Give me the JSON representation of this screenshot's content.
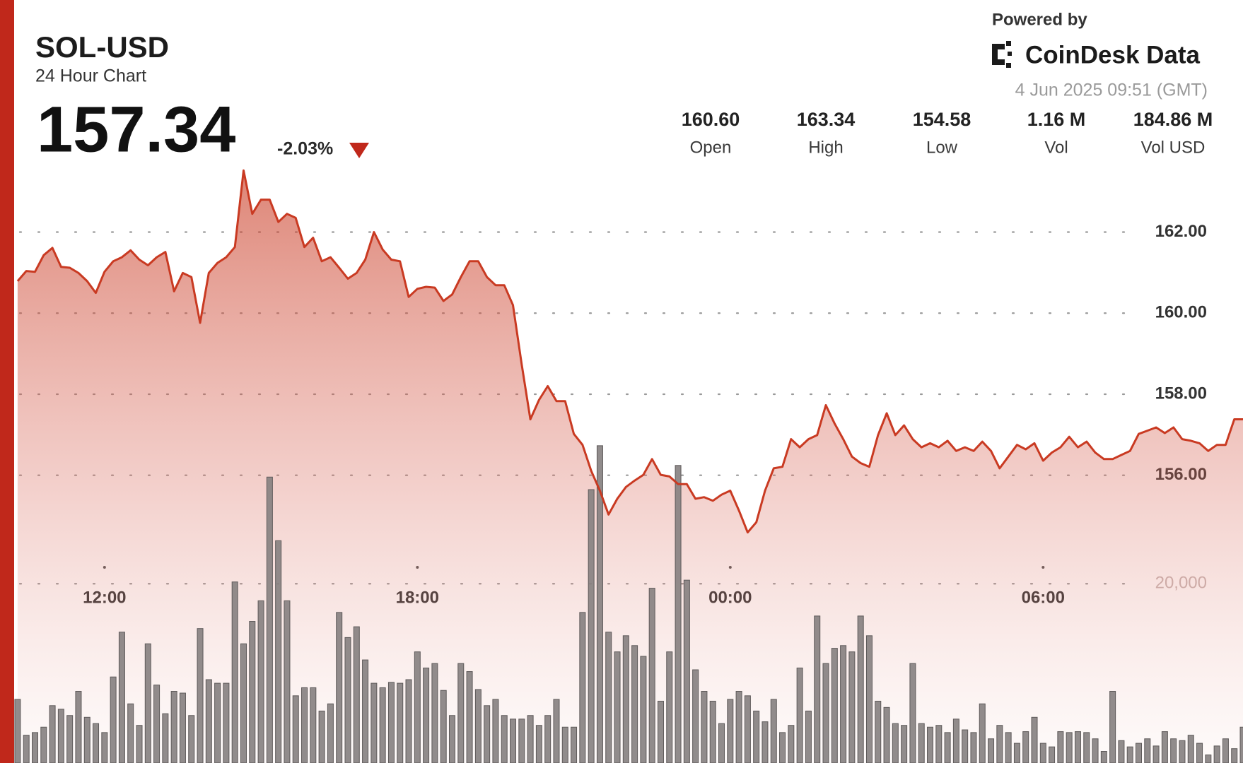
{
  "header": {
    "title": "SOL-USD",
    "subtitle": "24 Hour Chart",
    "price": "157.34",
    "change": "-2.03%",
    "powered_by": "Powered by",
    "brand": "CoinDesk Data",
    "timestamp": "4 Jun 2025 09:51 (GMT)",
    "stats": [
      {
        "value": "160.60",
        "label": "Open"
      },
      {
        "value": "163.34",
        "label": "High"
      },
      {
        "value": "154.58",
        "label": "Low"
      },
      {
        "value": "1.16 M",
        "label": "Vol"
      },
      {
        "value": "184.86 M",
        "label": "Vol USD"
      }
    ]
  },
  "chart_data": {
    "type": "line",
    "x": [
      620,
      630,
      640,
      650,
      660,
      670,
      680,
      690,
      700,
      710,
      720,
      730,
      740,
      750,
      760,
      770,
      780,
      790,
      800,
      810,
      820,
      830,
      840,
      850,
      860,
      870,
      880,
      890,
      900,
      910,
      920,
      930,
      940,
      950,
      960,
      970,
      980,
      990,
      1000,
      1010,
      1020,
      1030,
      1040,
      1050,
      1060,
      1070,
      1080,
      1090,
      1100,
      1110,
      1120,
      1130,
      1140,
      1150,
      1160,
      1170,
      1180,
      1190,
      1200,
      1210,
      1220,
      1230,
      1240,
      1250,
      1260,
      1270,
      1280,
      1290,
      1300,
      1310,
      1320,
      1330,
      1340,
      1350,
      1360,
      1370,
      1380,
      1390,
      1400,
      1410,
      1420,
      1430,
      1440,
      1450,
      1460,
      1470,
      1480,
      1490,
      1500,
      1510,
      1520,
      1530,
      1540,
      1550,
      1560,
      1570,
      1580,
      1590,
      1600,
      1610,
      1620,
      1630,
      1640,
      1650,
      1660,
      1670,
      1680,
      1690,
      1700,
      1710,
      1720,
      1730,
      1740,
      1750,
      1760,
      1770,
      1780,
      1790,
      1800,
      1810,
      1820,
      1830,
      1840,
      1850,
      1860,
      1870,
      1880,
      1890,
      1900,
      1910,
      1920,
      1930,
      1940,
      1950,
      1960,
      1970,
      1980,
      1990,
      2000,
      2010,
      2020,
      2030
    ],
    "series": [
      {
        "color": "#c93a22",
        "values": [
          160.79,
          161.04,
          161.02,
          161.43,
          161.61,
          161.14,
          161.12,
          160.99,
          160.79,
          160.5,
          161.02,
          161.28,
          161.38,
          161.55,
          161.32,
          161.18,
          161.38,
          161.51,
          160.54,
          160.99,
          160.89,
          159.76,
          160.99,
          161.24,
          161.38,
          161.63,
          163.52,
          162.45,
          162.8,
          162.8,
          162.25,
          162.45,
          162.35,
          161.63,
          161.86,
          161.28,
          161.38,
          161.12,
          160.85,
          160.99,
          161.32,
          162.0,
          161.57,
          161.32,
          161.28,
          160.4,
          160.6,
          160.65,
          160.63,
          160.3,
          160.46,
          160.89,
          161.28,
          161.28,
          160.89,
          160.69,
          160.69,
          160.2,
          158.74,
          157.38,
          157.86,
          158.2,
          157.83,
          157.83,
          157.02,
          156.75,
          156.11,
          155.62,
          155.03,
          155.42,
          155.71,
          155.87,
          156.01,
          156.4,
          156.01,
          155.97,
          155.78,
          155.78,
          155.42,
          155.46,
          155.37,
          155.52,
          155.62,
          155.13,
          154.59,
          154.84,
          155.62,
          156.17,
          156.21,
          156.89,
          156.69,
          156.89,
          156.99,
          157.73,
          157.28,
          156.89,
          156.46,
          156.3,
          156.21,
          156.99,
          157.53,
          156.99,
          157.23,
          156.89,
          156.69,
          156.79,
          156.69,
          156.85,
          156.6,
          156.69,
          156.6,
          156.83,
          156.6,
          156.17,
          156.46,
          156.75,
          156.64,
          156.79,
          156.36,
          156.56,
          156.69,
          156.95,
          156.69,
          156.83,
          156.56,
          156.4,
          156.4,
          156.5,
          156.6,
          157.02,
          157.1,
          157.18,
          157.04,
          157.18,
          156.89,
          156.85,
          156.79,
          156.6,
          156.75,
          156.75,
          157.38,
          157.38
        ]
      },
      {
        "color": "#858080",
        "axis": "y2",
        "type": "bar",
        "values": [
          7100,
          3100,
          3400,
          4000,
          6400,
          6000,
          5300,
          8000,
          5100,
          4400,
          3400,
          9600,
          14600,
          6600,
          4200,
          13300,
          8700,
          5500,
          8000,
          7800,
          5300,
          15000,
          9300,
          8900,
          8900,
          20200,
          13300,
          15800,
          18100,
          31900,
          24800,
          18100,
          7500,
          8400,
          8400,
          5800,
          6600,
          16800,
          14000,
          15200,
          11500,
          8900,
          8400,
          9000,
          8900,
          9300,
          12400,
          10600,
          11100,
          8100,
          5300,
          11100,
          10200,
          8200,
          6400,
          7100,
          5300,
          4900,
          4900,
          5300,
          4200,
          5300,
          7100,
          4000,
          4000,
          16800,
          30500,
          35400,
          14600,
          12400,
          14200,
          13100,
          11900,
          19500,
          6900,
          12400,
          33200,
          20400,
          10400,
          8000,
          6900,
          4400,
          7100,
          8000,
          7500,
          5800,
          4600,
          7100,
          3400,
          4200,
          10600,
          5800,
          16400,
          11100,
          12800,
          13100,
          12400,
          16400,
          14200,
          6900,
          6200,
          4400,
          4200,
          11100,
          4400,
          4000,
          4200,
          3400,
          4900,
          3700,
          3400,
          6600,
          2700,
          4200,
          3400,
          2200,
          3500,
          5100,
          2200,
          1800,
          3500,
          3400,
          3500,
          3400,
          2700,
          1300,
          8000,
          2500,
          1800,
          2200,
          2700,
          1900,
          3500,
          2700,
          2500,
          3100,
          2200,
          900,
          1900,
          2700,
          1600,
          4000
        ]
      }
    ],
    "xlim": [
      616,
      2030
    ],
    "xticks": [
      {
        "value": 720,
        "label": "12:00"
      },
      {
        "value": 1080,
        "label": "18:00"
      },
      {
        "value": 1440,
        "label": "00:00"
      },
      {
        "value": 1800,
        "label": "06:00"
      }
    ],
    "ylim": [
      148.9,
      163.63
    ],
    "yticks": [
      {
        "value": 156,
        "label": "156.00"
      },
      {
        "value": 158,
        "label": "158.00"
      },
      {
        "value": 160,
        "label": "160.00"
      },
      {
        "value": 162,
        "label": "162.00"
      }
    ],
    "y2lim": [
      0,
      66600
    ],
    "y2ticks": [
      {
        "value": 20000,
        "label": "20,000"
      }
    ],
    "grid": true
  }
}
